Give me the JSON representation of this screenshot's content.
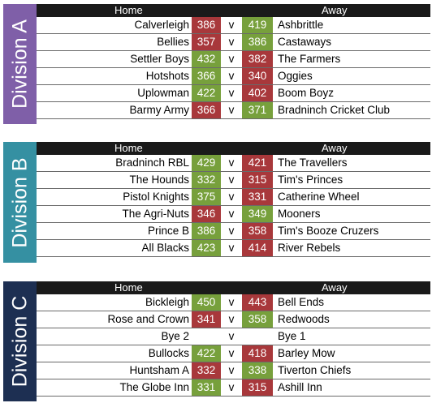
{
  "header": {
    "home": "Home",
    "away": "Away"
  },
  "colors": {
    "win": "#77a03c",
    "loss": "#a8383b",
    "header_bg": "#1a1a1a"
  },
  "divisions": [
    {
      "label": "Division A",
      "color": "#7f5fa8",
      "matches": [
        {
          "home": "Calverleigh",
          "home_score": "386",
          "home_result": "loss",
          "vs": "v",
          "away_score": "419",
          "away_result": "win",
          "away": "Ashbrittle"
        },
        {
          "home": "Bellies",
          "home_score": "357",
          "home_result": "loss",
          "vs": "v",
          "away_score": "386",
          "away_result": "win",
          "away": "Castaways"
        },
        {
          "home": "Settler Boys",
          "home_score": "432",
          "home_result": "win",
          "vs": "v",
          "away_score": "382",
          "away_result": "loss",
          "away": "The Farmers"
        },
        {
          "home": "Hotshots",
          "home_score": "366",
          "home_result": "win",
          "vs": "v",
          "away_score": "340",
          "away_result": "loss",
          "away": "Oggies"
        },
        {
          "home": "Uplowman",
          "home_score": "422",
          "home_result": "win",
          "vs": "v",
          "away_score": "402",
          "away_result": "loss",
          "away": "Boom Boyz"
        },
        {
          "home": "Barmy Army",
          "home_score": "366",
          "home_result": "loss",
          "vs": "v",
          "away_score": "371",
          "away_result": "win",
          "away": "Bradninch Cricket Club"
        }
      ]
    },
    {
      "label": "Division B",
      "color": "#3590a2",
      "matches": [
        {
          "home": "Bradninch RBL",
          "home_score": "429",
          "home_result": "win",
          "vs": "v",
          "away_score": "421",
          "away_result": "loss",
          "away": "The Travellers"
        },
        {
          "home": "The Hounds",
          "home_score": "332",
          "home_result": "win",
          "vs": "v",
          "away_score": "315",
          "away_result": "loss",
          "away": "Tim's Princes"
        },
        {
          "home": "Pistol Knights",
          "home_score": "375",
          "home_result": "win",
          "vs": "v",
          "away_score": "331",
          "away_result": "loss",
          "away": "Catherine Wheel"
        },
        {
          "home": "The Agri-Nuts",
          "home_score": "346",
          "home_result": "loss",
          "vs": "v",
          "away_score": "349",
          "away_result": "win",
          "away": "Mooners"
        },
        {
          "home": "Prince B",
          "home_score": "386",
          "home_result": "win",
          "vs": "v",
          "away_score": "358",
          "away_result": "loss",
          "away": "Tim's Booze Cruzers"
        },
        {
          "home": "All Blacks",
          "home_score": "423",
          "home_result": "win",
          "vs": "v",
          "away_score": "414",
          "away_result": "loss",
          "away": "River Rebels"
        }
      ]
    },
    {
      "label": "Division C",
      "color": "#1d2f52",
      "matches": [
        {
          "home": "Bickleigh",
          "home_score": "450",
          "home_result": "win",
          "vs": "v",
          "away_score": "443",
          "away_result": "loss",
          "away": "Bell Ends"
        },
        {
          "home": "Rose and Crown",
          "home_score": "341",
          "home_result": "loss",
          "vs": "v",
          "away_score": "358",
          "away_result": "win",
          "away": "Redwoods"
        },
        {
          "home": "Bye 2",
          "home_score": "",
          "home_result": "none",
          "vs": "v",
          "away_score": "",
          "away_result": "none",
          "away": "Bye 1"
        },
        {
          "home": "Bullocks",
          "home_score": "422",
          "home_result": "win",
          "vs": "v",
          "away_score": "418",
          "away_result": "loss",
          "away": "Barley Mow"
        },
        {
          "home": "Huntsham A",
          "home_score": "332",
          "home_result": "loss",
          "vs": "v",
          "away_score": "338",
          "away_result": "win",
          "away": "Tiverton Chiefs"
        },
        {
          "home": "The Globe Inn",
          "home_score": "331",
          "home_result": "win",
          "vs": "v",
          "away_score": "315",
          "away_result": "loss",
          "away": "Ashill Inn"
        }
      ]
    }
  ]
}
